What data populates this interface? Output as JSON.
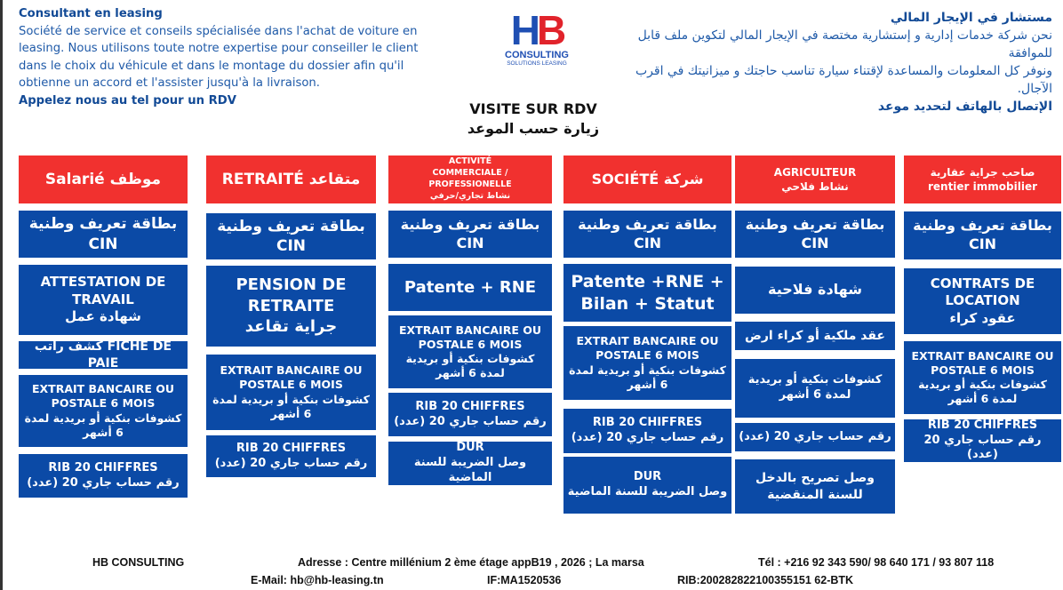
{
  "intro_fr": {
    "title": "Consultant en leasing",
    "body": "Société de service et conseils spécialisée dans l'achat de voiture en leasing. Nous utilisons toute notre expertise pour conseiller le client dans le choix du véhicule et dans le montage du dossier afin qu'il obtienne un accord et l'assister jusqu'à la livraison.",
    "cta": "Appelez nous au tel pour un RDV"
  },
  "intro_ar": {
    "title": "مستشار في الإيجار المالي",
    "body1": "نحن شركة خدمات إدارية و إستشارية مختصة في الإيجار المالي لتكوين ملف قابل للموافقة",
    "body2": "ونوفر كل المعلومات والمساعدة لإقتناء سيارة تناسب حاجتك و ميزانيتك في اقرب الآجال.",
    "cta": "الإتصال بالهاتف لتحديد موعد"
  },
  "logo": {
    "h": "H",
    "b": "B",
    "consulting": "CONSULTING",
    "tagline": "SOLUTIONS LEASING"
  },
  "visit": {
    "fr": "VISITE SUR RDV",
    "ar": "زيارة حسب الموعد"
  },
  "colors": {
    "header_red": "#f1312f",
    "box_blue": "#0b4aa6",
    "text_blue": "#1f5aa8"
  },
  "columns": [
    {
      "header": [
        "Salarié موظف"
      ],
      "boxes": [
        [
          "بطاقة تعريف وطنية CIN"
        ],
        [
          "ATTESTATION DE TRAVAIL",
          "شهادة عمل"
        ],
        [
          "كشف راتب FICHE DE PAIE"
        ],
        [
          "EXTRAIT BANCAIRE OU POSTALE 6 MOIS",
          "كشوفات بنكية أو بريدية لمدة 6 أشهر"
        ],
        [
          "RIB 20 CHIFFRES",
          "رقم حساب جاري 20 (عدد)"
        ]
      ]
    },
    {
      "header": [
        "RETRAITÉ متقاعد"
      ],
      "boxes": [
        [
          "بطاقة تعريف وطنية CIN"
        ],
        [
          "PENSION DE RETRAITE",
          "جراية تقاعد"
        ],
        [
          "EXTRAIT BANCAIRE OU POSTALE 6 MOIS",
          "كشوفات بنكية أو بريدية لمدة 6 أشهر"
        ],
        [
          "RIB 20 CHIFFRES",
          "رقم حساب جاري 20 (عدد)"
        ]
      ]
    },
    {
      "header": [
        "ACTIVITÉ",
        "COMMERCIALE / PROFESSIONELLE",
        "نشاط تجاري/حرفي"
      ],
      "boxes": [
        [
          "بطاقة تعريف وطنية CIN"
        ],
        [
          "Patente + RNE"
        ],
        [
          "EXTRAIT BANCAIRE OU POSTALE 6 MOIS",
          "كشوفات بنكية أو بريدية لمدة 6 أشهر"
        ],
        [
          "RIB 20 CHIFFRES",
          "رقم حساب جاري 20 (عدد)"
        ],
        [
          "DUR",
          "وصل الضريبة للسنة الماضية"
        ]
      ]
    },
    {
      "header": [
        "SOCIÉTÉ شركة"
      ],
      "boxes": [
        [
          "بطاقة تعريف وطنية CIN"
        ],
        [
          "Patente +RNE + Bilan + Statut"
        ],
        [
          "EXTRAIT BANCAIRE OU POSTALE 6 MOIS",
          "كشوفات بنكية أو بريدية لمدة 6 أشهر"
        ],
        [
          "RIB 20 CHIFFRES",
          "رقم حساب جاري 20 (عدد)"
        ],
        [
          "DUR",
          "وصل الضريبة للسنة الماضية"
        ]
      ]
    },
    {
      "header": [
        "AGRICULTEUR",
        "نشاط فلاحي"
      ],
      "boxes": [
        [
          "بطاقة تعريف وطنية CIN"
        ],
        [
          "شهادة فلاحية"
        ],
        [
          "عقد ملكية أو كراء ارض"
        ],
        [
          "كشوفات بنكية أو بريدية لمدة 6 أشهر"
        ],
        [
          "رقم حساب جاري 20 (عدد)"
        ],
        [
          "وصل تصريح بالدخل للسنة المنقضية"
        ]
      ]
    },
    {
      "header": [
        "صاحب جراية عقارية",
        "rentier immobilier"
      ],
      "boxes": [
        [
          "بطاقة تعريف وطنية CIN"
        ],
        [
          "CONTRATS DE LOCATION",
          "عقود كراء"
        ],
        [
          "EXTRAIT BANCAIRE OU POSTALE 6 MOIS",
          "كشوفات بنكية أو بريدية لمدة 6 أشهر"
        ],
        [
          "RIB 20 CHIFFRES",
          "رقم حساب جاري 20 (عدد)"
        ]
      ]
    }
  ],
  "footer": {
    "company": "HB CONSULTING",
    "address": "Adresse : Centre millénium 2 ème étage appB19 , 2026 ; La marsa",
    "tel": "Tél : +216 92 343 590/ 98 640 171 / 93 807 118",
    "email": "E-Mail: hb@hb-leasing.tn",
    "if": "IF:MA1520536",
    "rib": "RIB:200282822100355151 62-BTK"
  }
}
